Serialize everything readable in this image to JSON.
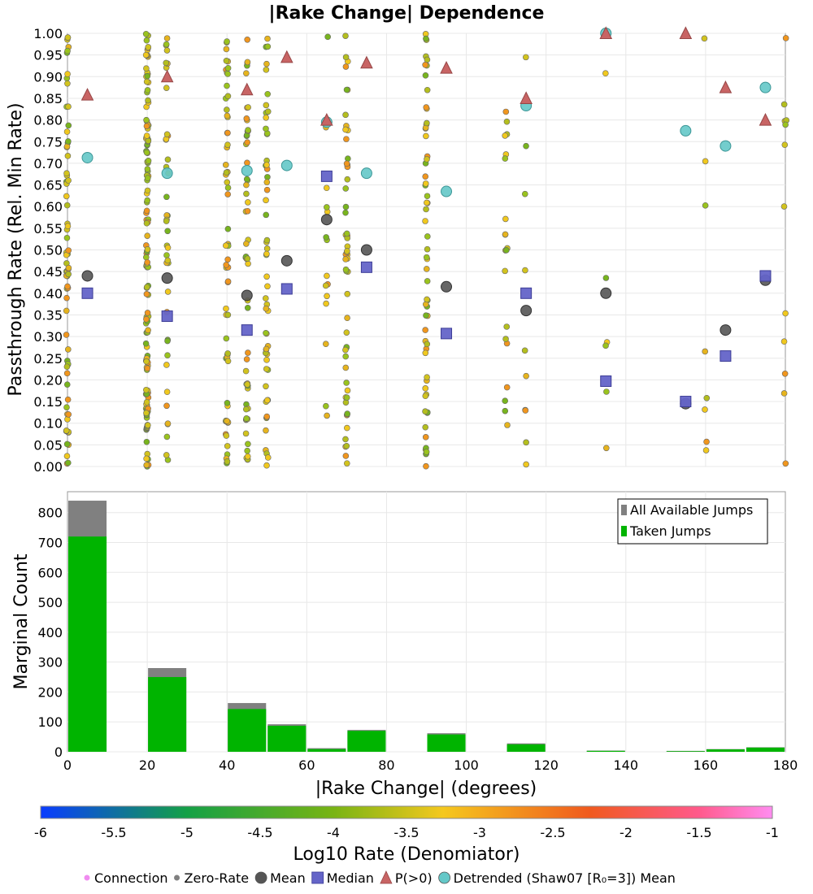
{
  "chart_data": [
    {
      "type": "scatter",
      "title": "|Rake Change| Dependence",
      "xlabel": "",
      "ylabel": "Passthrough Rate (Rel. Min Rate)",
      "xlim": [
        0,
        180
      ],
      "ylim": [
        0,
        1
      ],
      "y_ticks": [
        "0.00",
        "0.05",
        "0.10",
        "0.15",
        "0.20",
        "0.25",
        "0.30",
        "0.35",
        "0.40",
        "0.45",
        "0.50",
        "0.55",
        "0.60",
        "0.65",
        "0.70",
        "0.75",
        "0.80",
        "0.85",
        "0.90",
        "0.95",
        "1.00"
      ],
      "grid": true,
      "point_columns": [
        0,
        20,
        25,
        40,
        45,
        50,
        65,
        70,
        90,
        110,
        115,
        135,
        160,
        180
      ],
      "series": [
        {
          "name": "Mean",
          "color": "#555555",
          "marker": "circle",
          "points": [
            [
              5,
              0.44
            ],
            [
              25,
              0.435
            ],
            [
              45,
              0.395
            ],
            [
              55,
              0.475
            ],
            [
              65,
              0.57
            ],
            [
              75,
              0.5
            ],
            [
              95,
              0.415
            ],
            [
              115,
              0.36
            ],
            [
              135,
              0.4
            ],
            [
              155,
              0.145
            ],
            [
              165,
              0.315
            ],
            [
              175,
              0.43
            ]
          ]
        },
        {
          "name": "Median",
          "color": "#6464c8",
          "marker": "square",
          "points": [
            [
              5,
              0.4
            ],
            [
              25,
              0.347
            ],
            [
              45,
              0.315
            ],
            [
              55,
              0.41
            ],
            [
              65,
              0.67
            ],
            [
              75,
              0.46
            ],
            [
              95,
              0.307
            ],
            [
              115,
              0.4
            ],
            [
              135,
              0.197
            ],
            [
              155,
              0.15
            ],
            [
              165,
              0.255
            ],
            [
              175,
              0.44
            ]
          ]
        },
        {
          "name": "P(>0)",
          "color": "#c86464",
          "marker": "triangle",
          "points": [
            [
              5,
              0.858
            ],
            [
              25,
              0.9
            ],
            [
              45,
              0.87
            ],
            [
              55,
              0.945
            ],
            [
              65,
              0.8
            ],
            [
              75,
              0.932
            ],
            [
              95,
              0.92
            ],
            [
              115,
              0.85
            ],
            [
              135,
              1.0
            ],
            [
              155,
              1.0
            ],
            [
              165,
              0.875
            ],
            [
              175,
              0.8
            ]
          ]
        },
        {
          "name": "Detrended (Shaw07 [R₀=3]) Mean",
          "color": "#64c8c8",
          "marker": "circle",
          "points": [
            [
              5,
              0.713
            ],
            [
              25,
              0.677
            ],
            [
              45,
              0.683
            ],
            [
              55,
              0.695
            ],
            [
              65,
              0.795
            ],
            [
              75,
              0.677
            ],
            [
              95,
              0.635
            ],
            [
              115,
              0.833
            ],
            [
              135,
              1.0
            ],
            [
              155,
              0.775
            ],
            [
              165,
              0.74
            ],
            [
              175,
              0.875
            ]
          ]
        }
      ]
    },
    {
      "type": "bar",
      "xlabel": "|Rake Change| (degrees)",
      "ylabel": "Marginal Count",
      "xlim": [
        0,
        180
      ],
      "ylim": [
        0,
        870
      ],
      "x_ticks": [
        "0",
        "20",
        "40",
        "60",
        "80",
        "100",
        "120",
        "140",
        "160",
        "180"
      ],
      "y_ticks": [
        "0",
        "100",
        "200",
        "300",
        "400",
        "500",
        "600",
        "700",
        "800"
      ],
      "legend_position": "top-right",
      "bin_starts": [
        0,
        10,
        20,
        30,
        40,
        50,
        60,
        70,
        80,
        90,
        100,
        110,
        120,
        130,
        140,
        150,
        160,
        170
      ],
      "bin_width": 10,
      "series": [
        {
          "name": "All Available Jumps",
          "color": "#808080",
          "values": [
            840,
            0,
            280,
            0,
            163,
            92,
            12,
            73,
            0,
            62,
            0,
            28,
            0,
            4,
            0,
            3,
            9,
            15
          ]
        },
        {
          "name": "Taken Jumps",
          "color": "#00b400",
          "values": [
            720,
            0,
            250,
            0,
            143,
            87,
            9,
            70,
            0,
            58,
            0,
            25,
            0,
            3,
            0,
            2,
            8,
            14
          ]
        }
      ]
    },
    {
      "type": "colorbar",
      "label": "Log10 Rate (Denomiator)",
      "range": [
        -6,
        -1
      ],
      "ticks": [
        "-6",
        "-5.5",
        "-5",
        "-4.5",
        "-4",
        "-3.5",
        "-3",
        "-2.5",
        "-2",
        "-1.5",
        "-1"
      ],
      "colors": [
        "#0a3cff",
        "#14a046",
        "#78b414",
        "#f5c81e",
        "#f05a1e",
        "#ff5a8c",
        "#ff8cf0"
      ]
    }
  ],
  "legend": {
    "items": [
      {
        "label": "Connection",
        "color": "#f08cf0",
        "marker": "small-dot"
      },
      {
        "label": "Zero-Rate",
        "color": "#808080",
        "marker": "small-dot"
      },
      {
        "label": "Mean",
        "color": "#555555",
        "marker": "circle"
      },
      {
        "label": "Median",
        "color": "#6464c8",
        "marker": "square"
      },
      {
        "label": "P(>0)",
        "color": "#c86464",
        "marker": "triangle"
      },
      {
        "label": "Detrended (Shaw07 [R₀=3]) Mean",
        "color": "#64c8c8",
        "marker": "circle"
      }
    ]
  }
}
